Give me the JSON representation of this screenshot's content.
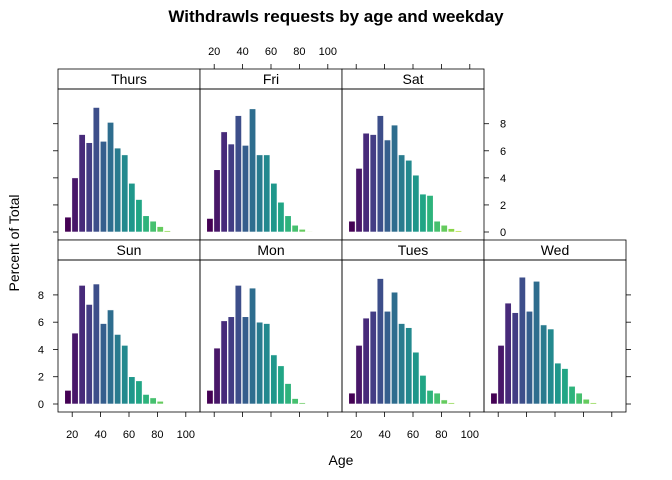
{
  "chart_data": {
    "type": "bar",
    "title": "Withdrawls requests by age and weekday",
    "xlabel": "Age",
    "ylabel": "Percent of Total",
    "xlim": [
      10,
      110
    ],
    "ylim": [
      0,
      9.9
    ],
    "x_ticks": [
      20,
      40,
      60,
      80,
      100
    ],
    "y_ticks": [
      0,
      2,
      4,
      6,
      8
    ],
    "bins": [
      17,
      22,
      27,
      32,
      37,
      42,
      47,
      52,
      57,
      62,
      67,
      72,
      77,
      82,
      87,
      92,
      97
    ],
    "bin_width": 4.5,
    "colors": [
      "#440154",
      "#481769",
      "#472A7A",
      "#433D84",
      "#3D4E8A",
      "#355E8D",
      "#2E6D8E",
      "#297B8E",
      "#23898E",
      "#1F978B",
      "#21A585",
      "#2EB37C",
      "#46C06F",
      "#65CB5E",
      "#89D548",
      "#B0DD2F",
      "#D8E219"
    ],
    "panels": [
      {
        "name": "Thurs",
        "values": [
          1.1,
          4.0,
          7.2,
          6.6,
          9.2,
          6.7,
          8.1,
          6.2,
          5.7,
          3.6,
          2.4,
          1.2,
          0.8,
          0.4,
          0.1,
          0.0,
          0.0
        ]
      },
      {
        "name": "Fri",
        "values": [
          1.0,
          4.6,
          7.4,
          6.5,
          8.6,
          6.4,
          9.1,
          5.7,
          5.7,
          3.6,
          2.2,
          1.2,
          0.5,
          0.2,
          0.05,
          0.0,
          0.0
        ]
      },
      {
        "name": "Sat",
        "values": [
          0.8,
          4.7,
          7.3,
          7.2,
          8.6,
          6.8,
          7.9,
          5.7,
          5.3,
          4.2,
          2.8,
          2.7,
          0.8,
          0.5,
          0.25,
          0.1,
          0.0
        ]
      },
      {
        "name": "Sun",
        "values": [
          1.0,
          5.2,
          8.7,
          7.3,
          8.8,
          5.9,
          6.9,
          5.1,
          4.3,
          2.0,
          1.7,
          0.7,
          0.45,
          0.2,
          0.0,
          0.0,
          0.0
        ]
      },
      {
        "name": "Mon",
        "values": [
          1.0,
          4.1,
          6.1,
          6.4,
          8.7,
          6.4,
          8.5,
          6.0,
          5.9,
          3.6,
          2.8,
          1.5,
          0.4,
          0.1,
          0.0,
          0.0,
          0.0
        ]
      },
      {
        "name": "Tues",
        "values": [
          0.8,
          4.3,
          6.3,
          6.8,
          9.2,
          6.8,
          8.2,
          5.9,
          5.6,
          3.8,
          2.1,
          1.0,
          0.8,
          0.3,
          0.1,
          0.0,
          0.0
        ]
      },
      {
        "name": "Wed",
        "values": [
          0.8,
          4.3,
          7.4,
          6.7,
          9.3,
          6.8,
          9.0,
          5.8,
          5.5,
          3.0,
          2.6,
          1.3,
          0.8,
          0.35,
          0.1,
          0.0,
          0.0
        ]
      }
    ]
  }
}
